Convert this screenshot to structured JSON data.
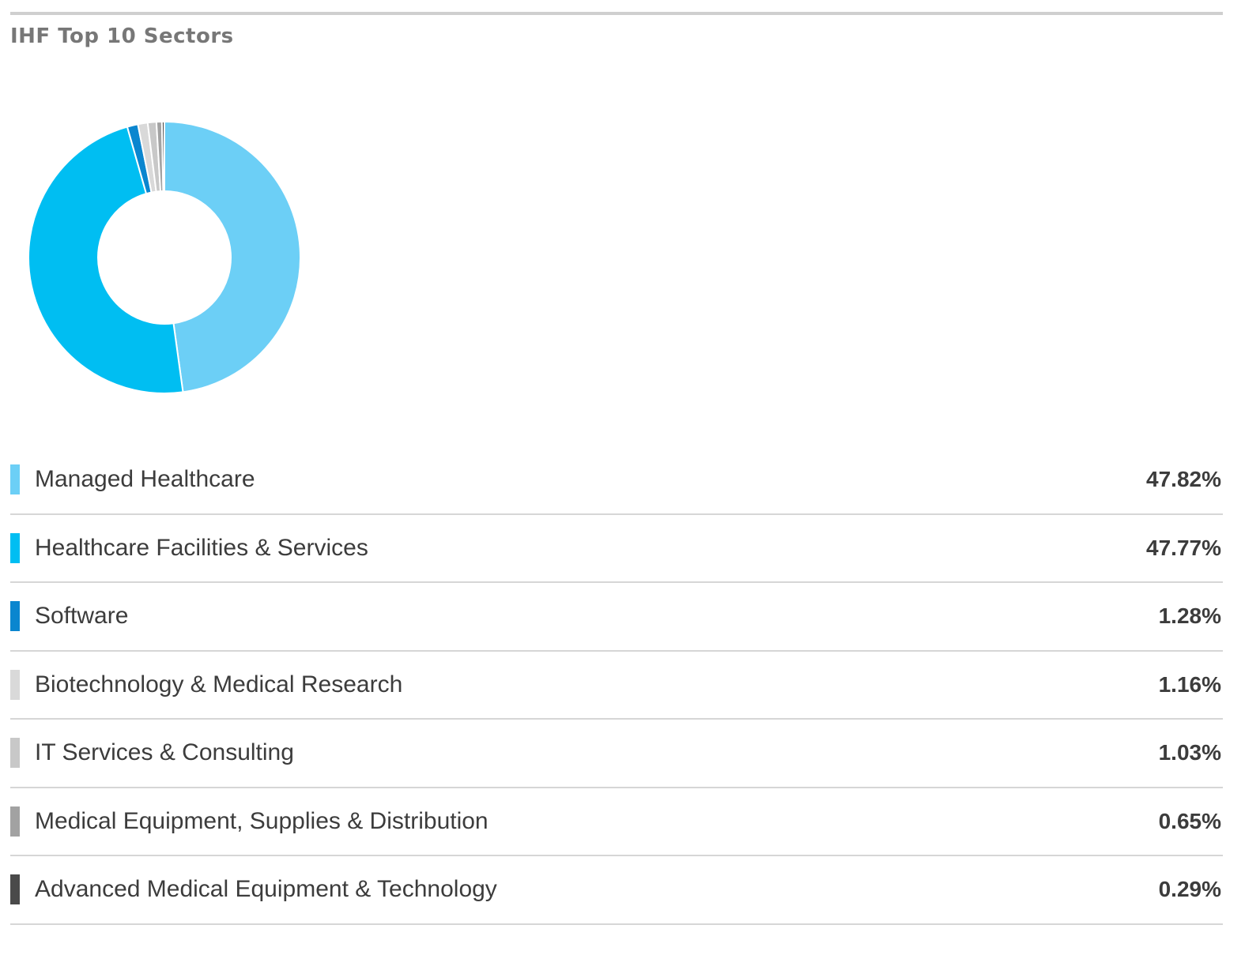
{
  "title": "IHF Top 10 Sectors",
  "chart_data": {
    "type": "pie",
    "title": "IHF Top 10 Sectors",
    "donut": true,
    "categories": [
      "Managed Healthcare",
      "Healthcare Facilities & Services",
      "Software",
      "Biotechnology & Medical Research",
      "IT Services & Consulting",
      "Medical Equipment, Supplies & Distribution",
      "Advanced Medical Equipment & Technology"
    ],
    "values": [
      47.82,
      47.77,
      1.28,
      1.16,
      1.03,
      0.65,
      0.29
    ],
    "value_labels": [
      "47.82%",
      "47.77%",
      "1.28%",
      "1.16%",
      "1.03%",
      "0.65%",
      "0.29%"
    ],
    "colors": [
      "#6ccff6",
      "#00bef2",
      "#0a86cf",
      "#d9d9d9",
      "#c8c8c8",
      "#a2a2a2",
      "#4a4a4a"
    ],
    "legend_position": "bottom"
  }
}
